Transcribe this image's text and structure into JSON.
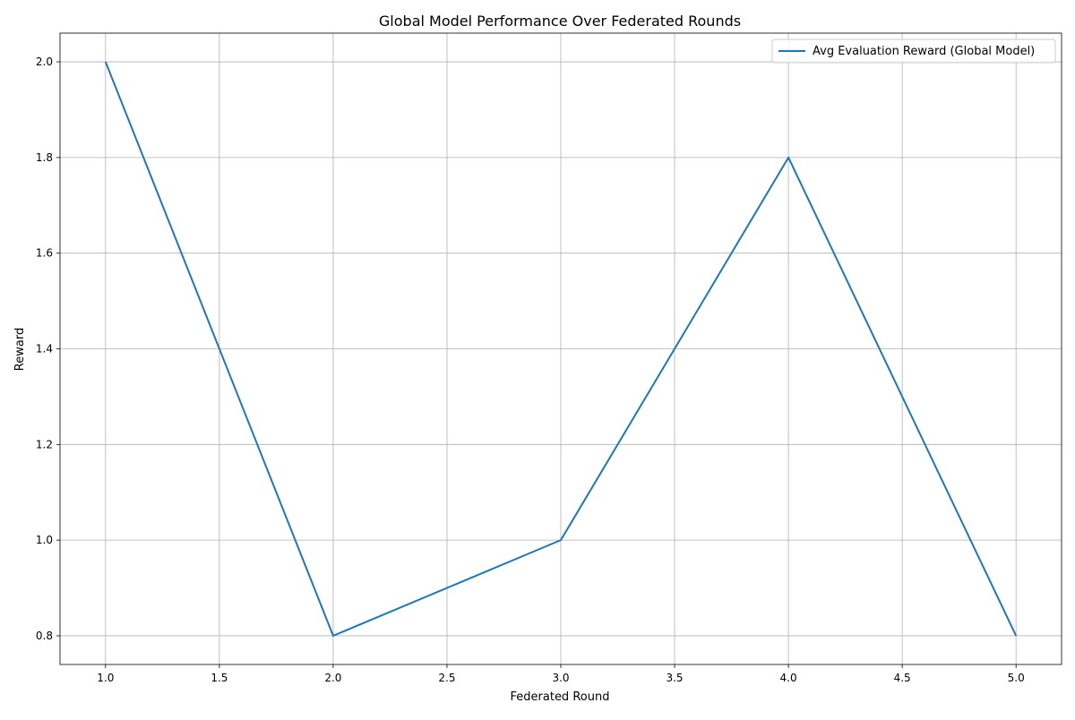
{
  "chart_data": {
    "type": "line",
    "title": "Global Model Performance Over Federated Rounds",
    "xlabel": "Federated Round",
    "ylabel": "Reward",
    "x": [
      1,
      2,
      3,
      4,
      5
    ],
    "series": [
      {
        "name": "Avg Evaluation Reward (Global Model)",
        "values": [
          2.0,
          0.8,
          1.0,
          1.8,
          0.8
        ],
        "color": "#1f77b4"
      }
    ],
    "xlim": [
      0.8,
      5.2
    ],
    "ylim": [
      0.74,
      2.06
    ],
    "xticks": [
      "1.0",
      "1.5",
      "2.0",
      "2.5",
      "3.0",
      "3.5",
      "4.0",
      "4.5",
      "5.0"
    ],
    "yticks": [
      "0.8",
      "1.0",
      "1.2",
      "1.4",
      "1.6",
      "1.8",
      "2.0"
    ],
    "grid": true,
    "legend": "top-right"
  }
}
